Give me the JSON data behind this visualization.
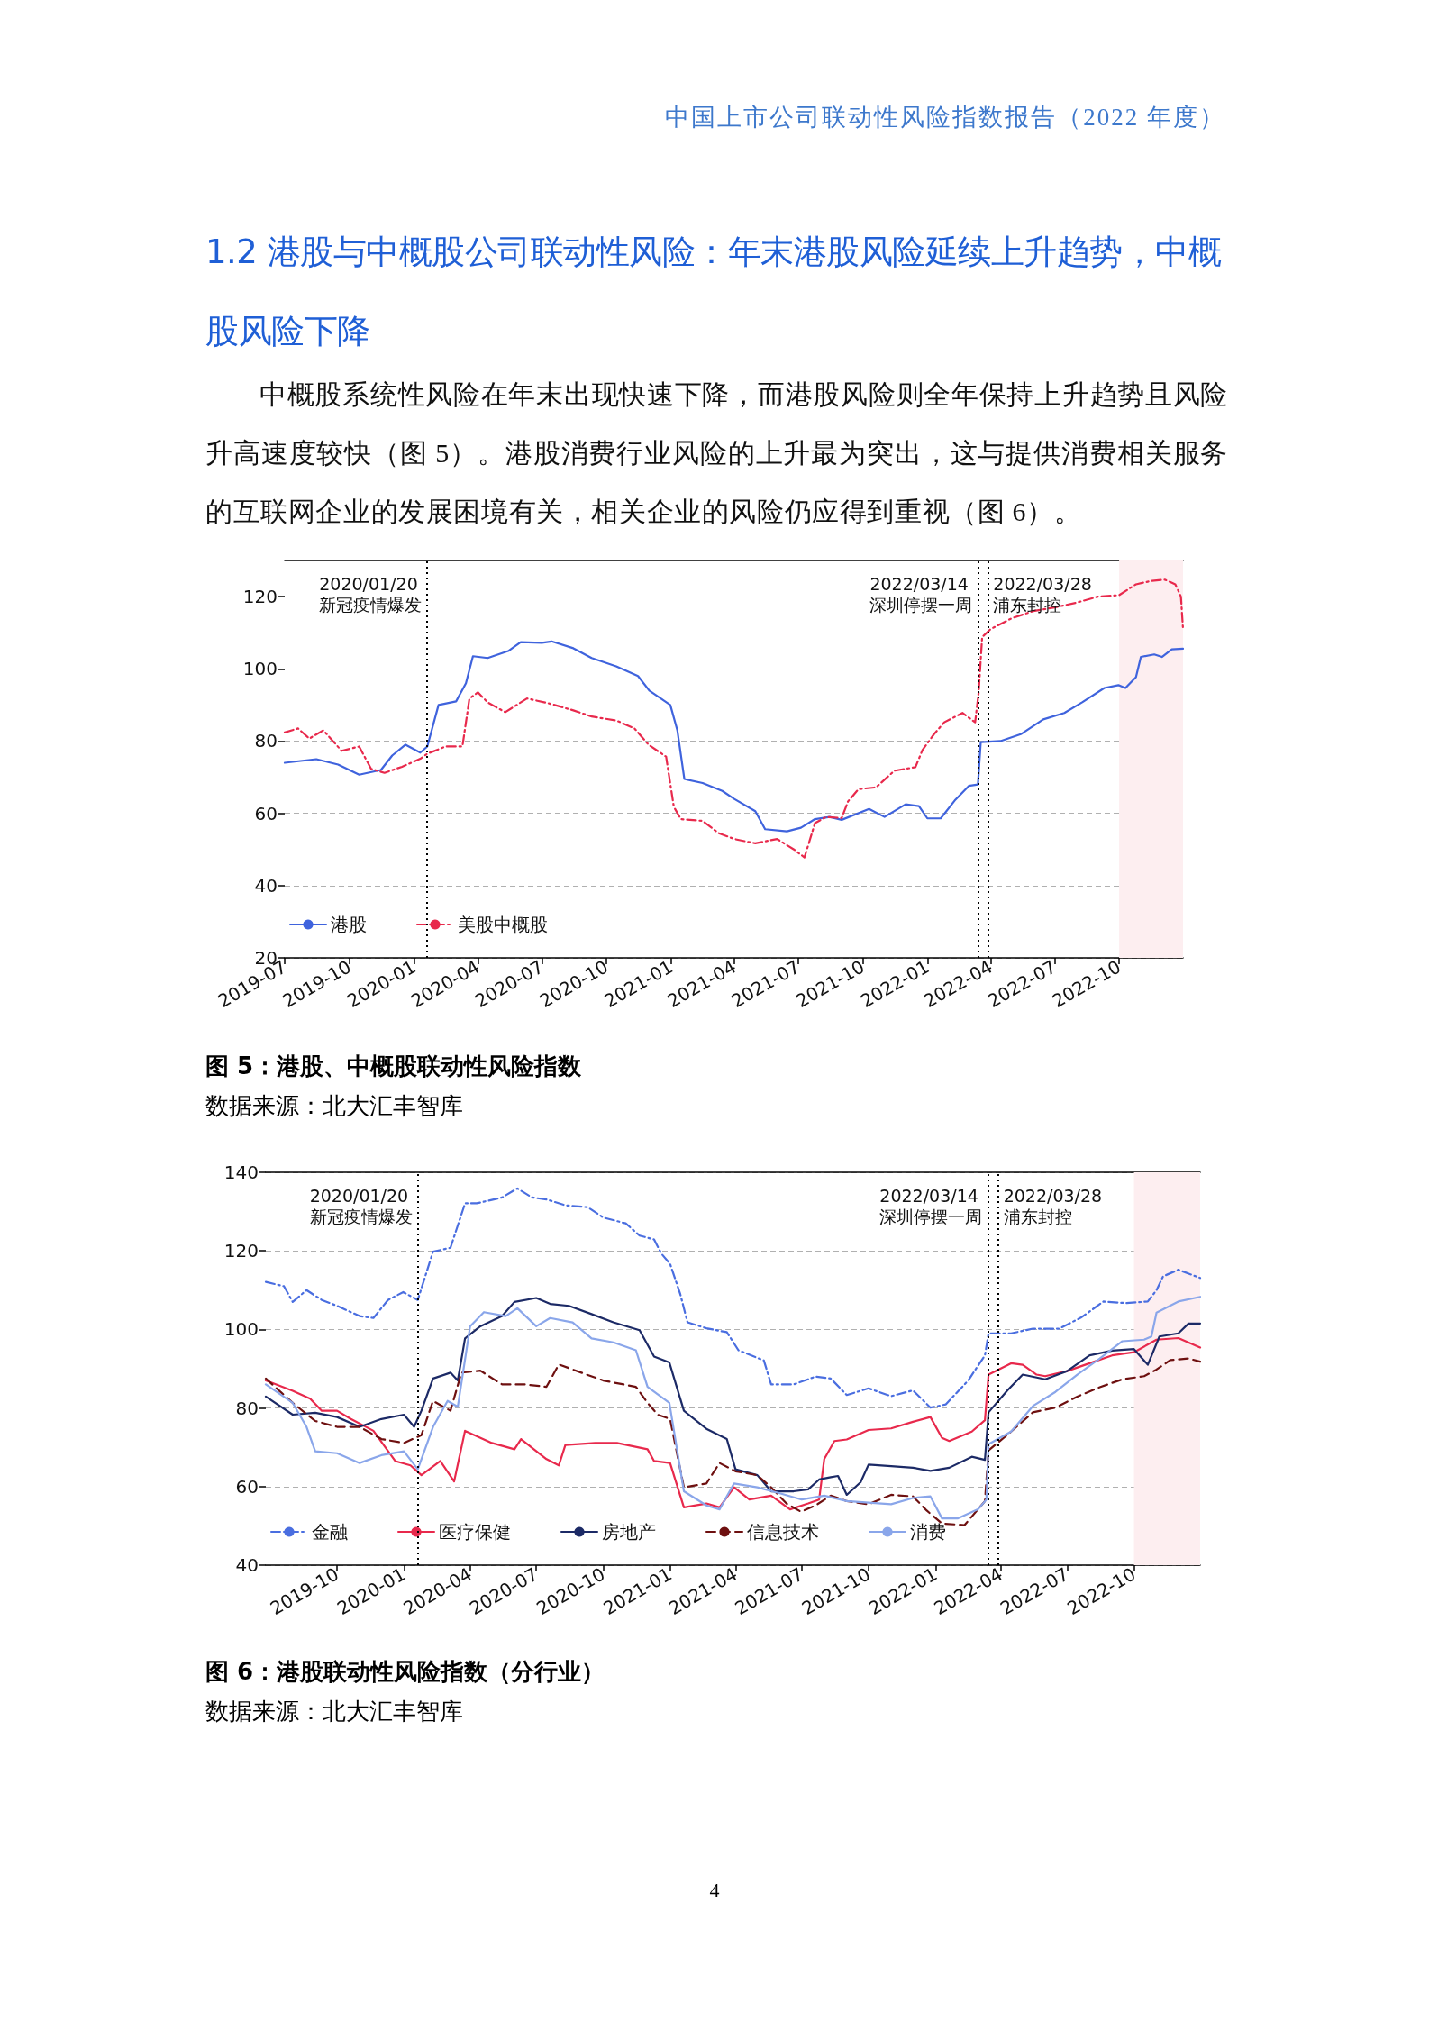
{
  "chart_data": [
    {
      "type": "other",
      "title": "1.2 港股与中概股公司联动性风险：年末港股风险延续上升趋势，中概股风险下降",
      "annotations": [
        "中国上市公司联动性风险指数报告（2022 年度）",
        "中概股系统性风险在年末出现快速下降，而港股风险则全年保持上升趋势且风险升高速度较快（图 5）。港股消费行业风险的上升最为突出，这与提供消费相关服务的互联网企业的发展困境有关，相关企业的风险仍应得到重视（图 6）。",
        "4"
      ]
    },
    {
      "type": "line",
      "title": "图 5：港股、中概股联动性风险指数",
      "annotations": [
        "数据来源：北大汇丰智库"
      ],
      "xlim": [
        "2019-07-01",
        "2022-12-31"
      ],
      "xticks": [
        "2019-07",
        "2019-10",
        "2020-01",
        "2020-04",
        "2020-07",
        "2020-10",
        "2021-01",
        "2021-04",
        "2021-07",
        "2021-10",
        "2022-01",
        "2022-04",
        "2022-07",
        "2022-10"
      ],
      "ylim": [
        20,
        130
      ],
      "yticks": [
        20,
        40,
        60,
        80,
        100,
        120
      ],
      "grid": "y",
      "legend": "bottom",
      "marker": "none",
      "ref_lines": [
        {
          "axis": "x",
          "value": "2020-01-20",
          "label": "2020/01/20\n新冠疫情爆发",
          "color": "#000000",
          "line_style": "dotted"
        },
        {
          "axis": "x",
          "value": "2022-03-14",
          "label": "2022/03/14\n深圳停摆一周",
          "color": "#000000",
          "line_style": "dotted"
        },
        {
          "axis": "x",
          "value": "2022-03-28",
          "label": "2022/03/28\n浦东封控",
          "color": "#000000",
          "line_style": "dotted"
        }
      ],
      "bands": [
        {
          "axis": "x",
          "from": "2022-10-01",
          "to": "2022-12-31",
          "color": "#fdeef0"
        }
      ],
      "series": [
        {
          "name": "港股",
          "color": "#3f63dd",
          "line_style": "solid",
          "x": [
            "2019-07-01",
            "2019-08-15",
            "2019-09-15",
            "2019-10-15",
            "2019-11-15",
            "2019-12-01",
            "2019-12-20",
            "2020-01-10",
            "2020-01-20",
            "2020-02-05",
            "2020-03-01",
            "2020-03-15",
            "2020-03-25",
            "2020-04-15",
            "2020-05-15",
            "2020-06-01",
            "2020-07-01",
            "2020-07-15",
            "2020-08-15",
            "2020-09-10",
            "2020-10-15",
            "2020-11-15",
            "2020-12-01",
            "2020-12-31",
            "2021-01-10",
            "2021-01-20",
            "2021-02-15",
            "2021-03-15",
            "2021-04-01",
            "2021-05-01",
            "2021-05-15",
            "2021-06-15",
            "2021-07-05",
            "2021-07-25",
            "2021-08-15",
            "2021-09-01",
            "2021-10-10",
            "2021-11-01",
            "2021-12-01",
            "2021-12-20",
            "2022-01-01",
            "2022-01-20",
            "2022-02-10",
            "2022-03-01",
            "2022-03-14",
            "2022-03-18",
            "2022-04-15",
            "2022-05-15",
            "2022-06-15",
            "2022-07-15",
            "2022-08-10",
            "2022-09-10",
            "2022-09-30",
            "2022-10-10",
            "2022-10-25",
            "2022-11-01",
            "2022-11-20",
            "2022-12-01",
            "2022-12-15",
            "2022-12-31"
          ],
          "values": [
            74,
            75,
            73.5,
            70.7,
            72,
            76,
            79,
            76.8,
            78.5,
            90,
            91,
            96,
            103.5,
            103,
            105,
            107.4,
            107.2,
            107.6,
            105.7,
            103,
            100.7,
            98,
            94,
            90,
            83,
            69.5,
            68.4,
            66.2,
            64,
            60.6,
            55.6,
            55,
            56,
            58.4,
            59,
            58.2,
            61.2,
            59,
            62.5,
            62,
            58.6,
            58.6,
            63.8,
            67.6,
            68,
            79.7,
            80,
            82,
            86,
            87.8,
            90.8,
            94.7,
            95.5,
            94.7,
            97.7,
            103.3,
            104,
            103.3,
            105.4,
            105.6
          ]
        },
        {
          "name": "美股中概股",
          "color": "#e8294c",
          "line_style": "dashdot",
          "x": [
            "2019-07-01",
            "2019-07-20",
            "2019-08-05",
            "2019-08-25",
            "2019-09-20",
            "2019-10-15",
            "2019-11-01",
            "2019-11-20",
            "2019-12-15",
            "2020-01-10",
            "2020-01-20",
            "2020-02-15",
            "2020-03-10",
            "2020-03-20",
            "2020-04-01",
            "2020-04-15",
            "2020-05-10",
            "2020-06-10",
            "2020-07-10",
            "2020-08-15",
            "2020-09-10",
            "2020-10-15",
            "2020-11-10",
            "2020-11-30",
            "2020-12-25",
            "2021-01-05",
            "2021-01-15",
            "2021-02-15",
            "2021-03-10",
            "2021-04-01",
            "2021-05-01",
            "2021-06-01",
            "2021-06-25",
            "2021-07-10",
            "2021-07-25",
            "2021-08-10",
            "2021-09-01",
            "2021-09-10",
            "2021-09-25",
            "2021-10-20",
            "2021-11-15",
            "2021-12-15",
            "2021-12-25",
            "2022-01-10",
            "2022-01-25",
            "2022-02-20",
            "2022-03-10",
            "2022-03-15",
            "2022-03-20",
            "2022-04-01",
            "2022-05-01",
            "2022-06-01",
            "2022-07-01",
            "2022-08-01",
            "2022-09-01",
            "2022-10-01",
            "2022-10-25",
            "2022-11-15",
            "2022-12-05",
            "2022-12-20",
            "2022-12-28",
            "2022-12-31"
          ],
          "values": [
            82.4,
            83.5,
            80.7,
            83,
            77.3,
            78.5,
            72.3,
            71.2,
            72.9,
            75.1,
            76.5,
            78.5,
            78.5,
            91.8,
            93.5,
            90.7,
            88,
            91.8,
            90.5,
            88.5,
            86.8,
            85.7,
            83.5,
            79,
            75.7,
            61.8,
            58.4,
            57.9,
            54.5,
            52.9,
            51.7,
            52.9,
            50,
            47.8,
            57.3,
            59,
            58.7,
            63.3,
            66.7,
            67.2,
            71.8,
            72.8,
            77.5,
            81.8,
            85.2,
            87.8,
            85.2,
            93.4,
            108.8,
            111,
            114,
            116,
            117,
            118.3,
            120,
            120.4,
            123.4,
            124.3,
            124.7,
            123.4,
            120,
            111
          ]
        }
      ]
    },
    {
      "type": "line",
      "title": "图 6：港股联动性风险指数（分行业）",
      "annotations": [
        "数据来源：北大汇丰智库"
      ],
      "xlim": [
        "2019-06-25",
        "2022-12-31"
      ],
      "xticks": [
        "2019-10",
        "2020-01",
        "2020-04",
        "2020-07",
        "2020-10",
        "2021-01",
        "2021-04",
        "2021-07",
        "2021-10",
        "2022-01",
        "2022-04",
        "2022-07",
        "2022-10"
      ],
      "ylim": [
        40,
        140
      ],
      "yticks": [
        40,
        60,
        80,
        100,
        120,
        140
      ],
      "grid": "y",
      "legend": "bottom",
      "marker": "none",
      "ref_lines": [
        {
          "axis": "x",
          "value": "2020-01-20",
          "label": "2020/01/20\n新冠疫情爆发",
          "color": "#000000",
          "line_style": "dotted"
        },
        {
          "axis": "x",
          "value": "2022-03-14",
          "label": "2022/03/14\n深圳停摆一周",
          "color": "#000000",
          "line_style": "dotted"
        },
        {
          "axis": "x",
          "value": "2022-03-28",
          "label": "2022/03/28\n浦东封控",
          "color": "#000000",
          "line_style": "dotted"
        }
      ],
      "bands": [
        {
          "axis": "x",
          "from": "2022-10-01",
          "to": "2022-12-31",
          "color": "#fdeef0"
        }
      ],
      "series": [
        {
          "name": "金融",
          "color": "#4a6ee0",
          "line_style": "dashdot",
          "x": [
            "2019-06-25",
            "2019-07-20",
            "2019-08-01",
            "2019-08-20",
            "2019-09-10",
            "2019-10-01",
            "2019-11-01",
            "2019-11-20",
            "2019-12-10",
            "2019-12-31",
            "2020-01-20",
            "2020-02-10",
            "2020-03-05",
            "2020-03-25",
            "2020-04-10",
            "2020-05-15",
            "2020-06-05",
            "2020-06-25",
            "2020-07-15",
            "2020-08-10",
            "2020-09-10",
            "2020-10-01",
            "2020-11-01",
            "2020-11-20",
            "2020-12-10",
            "2020-12-20",
            "2021-01-01",
            "2021-01-15",
            "2021-01-25",
            "2021-02-20",
            "2021-03-20",
            "2021-04-05",
            "2021-05-10",
            "2021-05-20",
            "2021-06-20",
            "2021-07-20",
            "2021-08-10",
            "2021-09-01",
            "2021-10-01",
            "2021-11-01",
            "2021-12-01",
            "2021-12-25",
            "2022-01-15",
            "2022-02-15",
            "2022-03-10",
            "2022-03-15",
            "2022-04-15",
            "2022-05-15",
            "2022-06-20",
            "2022-07-20",
            "2022-08-20",
            "2022-09-20",
            "2022-10-20",
            "2022-11-01",
            "2022-11-10",
            "2022-12-01",
            "2022-12-31"
          ],
          "values": [
            112.1,
            111,
            107,
            110,
            107.5,
            106,
            103.4,
            102.9,
            107.5,
            109.5,
            107.5,
            119.8,
            120.8,
            132.1,
            132.1,
            133.6,
            135.9,
            133.6,
            133.1,
            131.6,
            131.1,
            128.5,
            127,
            123.9,
            122.9,
            119.3,
            116.7,
            109,
            101.8,
            100.3,
            99.3,
            94.7,
            92.1,
            86,
            86,
            88,
            87.5,
            83.3,
            85,
            83,
            84.5,
            80.1,
            80.9,
            87,
            93.4,
            99,
            99,
            100.2,
            100.2,
            103,
            107.1,
            106.7,
            107.1,
            110,
            113.5,
            115.2,
            113.1
          ]
        },
        {
          "name": "医疗保健",
          "color": "#e8294c",
          "line_style": "solid",
          "x": [
            "2019-06-25",
            "2019-08-01",
            "2019-08-25",
            "2019-09-10",
            "2019-10-01",
            "2019-10-20",
            "2019-11-20",
            "2019-12-20",
            "2020-01-10",
            "2020-01-25",
            "2020-02-20",
            "2020-03-10",
            "2020-03-25",
            "2020-05-01",
            "2020-06-01",
            "2020-06-10",
            "2020-07-15",
            "2020-08-01",
            "2020-08-10",
            "2020-09-20",
            "2020-10-20",
            "2020-12-01",
            "2020-12-10",
            "2021-01-01",
            "2021-01-20",
            "2021-02-20",
            "2021-03-10",
            "2021-03-30",
            "2021-04-20",
            "2021-05-20",
            "2021-06-15",
            "2021-07-10",
            "2021-07-25",
            "2021-08-01",
            "2021-08-15",
            "2021-09-01",
            "2021-10-01",
            "2021-11-01",
            "2021-12-01",
            "2021-12-25",
            "2022-01-10",
            "2022-01-20",
            "2022-02-20",
            "2022-03-10",
            "2022-03-15",
            "2022-04-15",
            "2022-05-01",
            "2022-05-20",
            "2022-06-01",
            "2022-07-01",
            "2022-08-01",
            "2022-09-01",
            "2022-10-01",
            "2022-11-01",
            "2022-12-01",
            "2022-12-31"
          ],
          "values": [
            87,
            84.4,
            82.4,
            79.3,
            79.3,
            77.2,
            74.2,
            66.5,
            65.4,
            62.9,
            66.5,
            61.3,
            74.2,
            71.1,
            69.5,
            72.1,
            67,
            65.4,
            70.6,
            71.1,
            71.1,
            69.5,
            66.5,
            66,
            54.7,
            55.7,
            54.7,
            59.8,
            56.7,
            57.7,
            54.2,
            55.7,
            56.7,
            67,
            71.6,
            72,
            74.4,
            74.8,
            76.5,
            77.7,
            72.4,
            71.6,
            74,
            76.9,
            88.5,
            91.4,
            91,
            88.5,
            88.1,
            89.4,
            91.4,
            93.4,
            94.2,
            97.4,
            97.8,
            95.4
          ]
        },
        {
          "name": "房地产",
          "color": "#1c2a66",
          "line_style": "solid",
          "x": [
            "2019-06-25",
            "2019-08-01",
            "2019-09-01",
            "2019-10-01",
            "2019-11-01",
            "2019-12-01",
            "2020-01-01",
            "2020-01-15",
            "2020-01-25",
            "2020-02-10",
            "2020-03-05",
            "2020-03-15",
            "2020-03-25",
            "2020-04-15",
            "2020-05-15",
            "2020-06-01",
            "2020-07-01",
            "2020-07-20",
            "2020-08-15",
            "2020-09-15",
            "2020-10-15",
            "2020-11-20",
            "2020-12-10",
            "2020-12-31",
            "2021-01-20",
            "2021-02-20",
            "2021-03-20",
            "2021-04-01",
            "2021-05-01",
            "2021-05-20",
            "2021-06-20",
            "2021-07-10",
            "2021-07-25",
            "2021-08-10",
            "2021-08-20",
            "2021-09-01",
            "2021-09-20",
            "2021-10-01",
            "2021-11-01",
            "2021-12-01",
            "2021-12-25",
            "2022-01-20",
            "2022-02-20",
            "2022-03-10",
            "2022-03-15",
            "2022-04-10",
            "2022-05-01",
            "2022-06-01",
            "2022-07-01",
            "2022-08-01",
            "2022-09-01",
            "2022-10-01",
            "2022-10-20",
            "2022-11-05",
            "2022-12-01",
            "2022-12-15",
            "2022-12-31"
          ],
          "values": [
            82.9,
            78.3,
            78.8,
            77.7,
            75.2,
            77.2,
            78.3,
            75.2,
            79.3,
            87.5,
            89,
            87,
            97.7,
            100.8,
            103.4,
            107,
            108,
            106.5,
            106,
            103.9,
            101.8,
            99.8,
            93.1,
            91.6,
            79.3,
            74.7,
            72.1,
            64.4,
            62.9,
            58.8,
            58.8,
            59.3,
            61.8,
            62.4,
            62.7,
            57.9,
            61.1,
            65.6,
            65.2,
            64.8,
            64,
            64.8,
            67.6,
            66.8,
            78.9,
            84.5,
            88.5,
            87.3,
            89.4,
            93.4,
            94.6,
            95,
            91,
            98.2,
            99,
            101.5,
            101.5
          ]
        },
        {
          "name": "信息技术",
          "color": "#6e1010",
          "line_style": "dashed",
          "x": [
            "2019-06-25",
            "2019-08-01",
            "2019-09-01",
            "2019-10-01",
            "2019-11-01",
            "2019-12-01",
            "2020-01-01",
            "2020-01-25",
            "2020-02-10",
            "2020-03-05",
            "2020-03-20",
            "2020-04-15",
            "2020-05-15",
            "2020-06-15",
            "2020-07-15",
            "2020-08-01",
            "2020-09-01",
            "2020-10-01",
            "2020-11-15",
            "2020-12-01",
            "2020-12-15",
            "2021-01-01",
            "2021-01-20",
            "2021-02-20",
            "2021-03-10",
            "2021-04-01",
            "2021-05-01",
            "2021-05-20",
            "2021-06-10",
            "2021-06-30",
            "2021-07-20",
            "2021-08-10",
            "2021-09-01",
            "2021-10-01",
            "2021-11-01",
            "2021-12-01",
            "2021-12-20",
            "2022-01-10",
            "2022-02-10",
            "2022-03-10",
            "2022-03-15",
            "2022-04-15",
            "2022-05-15",
            "2022-06-15",
            "2022-07-15",
            "2022-08-15",
            "2022-09-15",
            "2022-10-15",
            "2022-11-01",
            "2022-11-20",
            "2022-12-15",
            "2022-12-31"
          ],
          "values": [
            87.5,
            81.3,
            76.7,
            75.2,
            75.2,
            72.1,
            71.1,
            73.1,
            81.8,
            79.3,
            89,
            89.5,
            86,
            86,
            85.4,
            91.1,
            89,
            87,
            85.4,
            81.3,
            78.3,
            77.2,
            59.8,
            60.8,
            66,
            63.9,
            62.9,
            59.8,
            55.7,
            53.6,
            55.2,
            57.7,
            56.3,
            55.5,
            57.9,
            57.5,
            53.9,
            50.6,
            50.2,
            56.3,
            69.2,
            74,
            78.9,
            80.1,
            82.9,
            85.3,
            87.3,
            88.1,
            89.8,
            92.2,
            92.6,
            91.8
          ]
        },
        {
          "name": "消费",
          "color": "#8aa6ea",
          "line_style": "solid",
          "x": [
            "2019-06-25",
            "2019-08-01",
            "2019-08-20",
            "2019-09-01",
            "2019-10-01",
            "2019-11-01",
            "2019-12-01",
            "2020-01-01",
            "2020-01-20",
            "2020-02-10",
            "2020-03-01",
            "2020-03-15",
            "2020-04-01",
            "2020-04-20",
            "2020-05-20",
            "2020-06-05",
            "2020-07-01",
            "2020-07-20",
            "2020-08-20",
            "2020-09-15",
            "2020-10-15",
            "2020-11-15",
            "2020-12-01",
            "2020-12-31",
            "2021-01-20",
            "2021-02-20",
            "2021-03-10",
            "2021-03-30",
            "2021-05-01",
            "2021-06-01",
            "2021-07-01",
            "2021-08-01",
            "2021-09-01",
            "2021-10-01",
            "2021-11-01",
            "2021-12-01",
            "2021-12-25",
            "2022-01-10",
            "2022-02-01",
            "2022-03-01",
            "2022-03-12",
            "2022-03-15",
            "2022-04-15",
            "2022-05-15",
            "2022-06-15",
            "2022-07-15",
            "2022-08-15",
            "2022-09-15",
            "2022-10-15",
            "2022-10-25",
            "2022-11-01",
            "2022-12-01",
            "2022-12-31"
          ],
          "values": [
            86,
            81.3,
            75.2,
            69,
            68.5,
            66,
            68,
            69,
            64.4,
            75.2,
            81.8,
            80.3,
            100.8,
            104.4,
            103.4,
            105.4,
            100.8,
            102.9,
            101.8,
            97.7,
            96.7,
            94.7,
            85.4,
            81.3,
            58.8,
            55.2,
            54.2,
            60.8,
            59.8,
            58.3,
            56.7,
            57.7,
            56.3,
            55.9,
            55.5,
            57.1,
            57.5,
            51.9,
            51.9,
            54.3,
            56.7,
            70.8,
            74,
            80.5,
            84.1,
            88.5,
            92.6,
            97,
            97.4,
            98.2,
            104.3,
            107.1,
            108.3
          ]
        }
      ]
    }
  ]
}
